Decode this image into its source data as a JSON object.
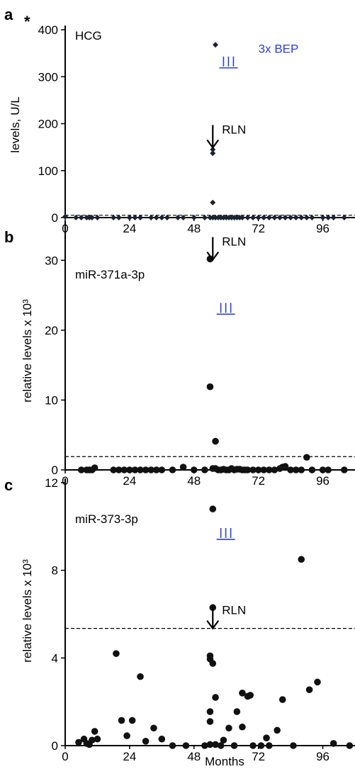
{
  "chart_data": [
    {
      "type": "scatter",
      "panel": "a",
      "asterisk": "*",
      "series_label": "HCG",
      "ylabel": "levels, U/L",
      "xlabel": "",
      "ylim": [
        0,
        400
      ],
      "yticks": [
        0,
        100,
        200,
        300,
        400
      ],
      "xlim": [
        0,
        108
      ],
      "xticks": [
        0,
        24,
        48,
        72,
        96
      ],
      "threshold": 5,
      "marker": "diamond",
      "annotations": [
        {
          "text": "RLN",
          "kind": "arrow",
          "x": 55,
          "y": 170
        },
        {
          "text": "III",
          "kind": "treatment",
          "x": 59,
          "y": 337
        },
        {
          "text": "3x BEP",
          "kind": "treatment-label",
          "x": 72,
          "y": 351
        }
      ],
      "points": [
        [
          0,
          2
        ],
        [
          4,
          0
        ],
        [
          6,
          0
        ],
        [
          8,
          0
        ],
        [
          9,
          0
        ],
        [
          10,
          0
        ],
        [
          12,
          0
        ],
        [
          18,
          0
        ],
        [
          20,
          0
        ],
        [
          24,
          0
        ],
        [
          26,
          0
        ],
        [
          28,
          0
        ],
        [
          32,
          0
        ],
        [
          34,
          0
        ],
        [
          36,
          0
        ],
        [
          38,
          0
        ],
        [
          42,
          0
        ],
        [
          44,
          0
        ],
        [
          48,
          0
        ],
        [
          52,
          0
        ],
        [
          54,
          0
        ],
        [
          55,
          145
        ],
        [
          55,
          137
        ],
        [
          55,
          32
        ],
        [
          55,
          0
        ],
        [
          56,
          368
        ],
        [
          56,
          0
        ],
        [
          57,
          0
        ],
        [
          58,
          0
        ],
        [
          59,
          0
        ],
        [
          60,
          0
        ],
        [
          61,
          0
        ],
        [
          62,
          0
        ],
        [
          63,
          0
        ],
        [
          64,
          0
        ],
        [
          65,
          0
        ],
        [
          66,
          0
        ],
        [
          68,
          0
        ],
        [
          70,
          0
        ],
        [
          72,
          0
        ],
        [
          74,
          0
        ],
        [
          76,
          0
        ],
        [
          78,
          0
        ],
        [
          80,
          0
        ],
        [
          82,
          0
        ],
        [
          84,
          0
        ],
        [
          86,
          0
        ],
        [
          88,
          0
        ],
        [
          90,
          0
        ],
        [
          92,
          0
        ],
        [
          96,
          0
        ],
        [
          98,
          0
        ],
        [
          100,
          0
        ],
        [
          104,
          0
        ]
      ]
    },
    {
      "type": "scatter",
      "panel": "b",
      "series_label": "miR-371a-3p",
      "ylabel": "relative levels x 10³",
      "xlabel": "",
      "ylim": [
        0,
        35
      ],
      "yticks": [
        0,
        10,
        20,
        30
      ],
      "xlim": [
        0,
        108
      ],
      "xticks": [
        0,
        24,
        48,
        72,
        96
      ],
      "threshold": 1.9,
      "marker": "circle",
      "annotations": [
        {
          "text": "RLN",
          "kind": "arrow",
          "x": 55,
          "y": 31.5
        },
        {
          "text": "III",
          "kind": "treatment",
          "x": 58,
          "y": 23.5
        }
      ],
      "points": [
        [
          6,
          0
        ],
        [
          8,
          0
        ],
        [
          9,
          0
        ],
        [
          10,
          0
        ],
        [
          11,
          0.3
        ],
        [
          18,
          0
        ],
        [
          20,
          0
        ],
        [
          22,
          0
        ],
        [
          24,
          0
        ],
        [
          26,
          0
        ],
        [
          28,
          0
        ],
        [
          30,
          0
        ],
        [
          32,
          0
        ],
        [
          34,
          0
        ],
        [
          36,
          0
        ],
        [
          40,
          0
        ],
        [
          44,
          0.4
        ],
        [
          48,
          0
        ],
        [
          52,
          0
        ],
        [
          54,
          30.2
        ],
        [
          54,
          11.9
        ],
        [
          55,
          0.2
        ],
        [
          56,
          4.1
        ],
        [
          56,
          0.2
        ],
        [
          57,
          0
        ],
        [
          58,
          0
        ],
        [
          59,
          0.1
        ],
        [
          60,
          0
        ],
        [
          61,
          0
        ],
        [
          62,
          0.2
        ],
        [
          63,
          0
        ],
        [
          64,
          0.1
        ],
        [
          65,
          0.1
        ],
        [
          66,
          0
        ],
        [
          67,
          0
        ],
        [
          68,
          0
        ],
        [
          70,
          0
        ],
        [
          72,
          0
        ],
        [
          74,
          0
        ],
        [
          76,
          0
        ],
        [
          78,
          0
        ],
        [
          80,
          0.2
        ],
        [
          81,
          0.4
        ],
        [
          82,
          0.5
        ],
        [
          84,
          0
        ],
        [
          86,
          0
        ],
        [
          88,
          0
        ],
        [
          90,
          1.8
        ],
        [
          92,
          0
        ],
        [
          96,
          0
        ],
        [
          98,
          0
        ],
        [
          104,
          0
        ]
      ]
    },
    {
      "type": "scatter",
      "panel": "c",
      "series_label": "miR-373-3p",
      "ylabel": "relative levels  x 10³",
      "xlabel": "Months",
      "ylim": [
        0,
        12
      ],
      "yticks": [
        0,
        4,
        8,
        12
      ],
      "xlim": [
        0,
        108
      ],
      "xticks": [
        0,
        24,
        48,
        72,
        96
      ],
      "threshold": 5.35,
      "marker": "circle",
      "annotations": [
        {
          "text": "RLN",
          "kind": "arrow",
          "x": 55,
          "y": 5.8
        },
        {
          "text": "III",
          "kind": "treatment",
          "x": 58,
          "y": 9.8
        }
      ],
      "points": [
        [
          5,
          0.15
        ],
        [
          7,
          0.3
        ],
        [
          8,
          0.1
        ],
        [
          9,
          0.05
        ],
        [
          10,
          0.25
        ],
        [
          11,
          0.65
        ],
        [
          12,
          0.3
        ],
        [
          19,
          4.2
        ],
        [
          21,
          1.15
        ],
        [
          23,
          0.45
        ],
        [
          25,
          1.15
        ],
        [
          28,
          3.15
        ],
        [
          30,
          0.2
        ],
        [
          33,
          0.8
        ],
        [
          36,
          0.3
        ],
        [
          40,
          0
        ],
        [
          45,
          0
        ],
        [
          52,
          0
        ],
        [
          54,
          4.1
        ],
        [
          54,
          3.95
        ],
        [
          54,
          1.55
        ],
        [
          54,
          1.1
        ],
        [
          54,
          0.05
        ],
        [
          55,
          10.8
        ],
        [
          55,
          6.3
        ],
        [
          55,
          3.75
        ],
        [
          56,
          2.2
        ],
        [
          56,
          0.05
        ],
        [
          58,
          0
        ],
        [
          59,
          0.25
        ],
        [
          61,
          0.8
        ],
        [
          63,
          0
        ],
        [
          64,
          1.55
        ],
        [
          66,
          2.4
        ],
        [
          66,
          0.85
        ],
        [
          68,
          2.25
        ],
        [
          69,
          2.3
        ],
        [
          70,
          0
        ],
        [
          73,
          0
        ],
        [
          75,
          0.35
        ],
        [
          76,
          0
        ],
        [
          79,
          0.7
        ],
        [
          81,
          2.1
        ],
        [
          85,
          0
        ],
        [
          88,
          8.5
        ],
        [
          91,
          2.55
        ],
        [
          94,
          2.9
        ],
        [
          100,
          0.1
        ],
        [
          106,
          0
        ]
      ]
    }
  ]
}
